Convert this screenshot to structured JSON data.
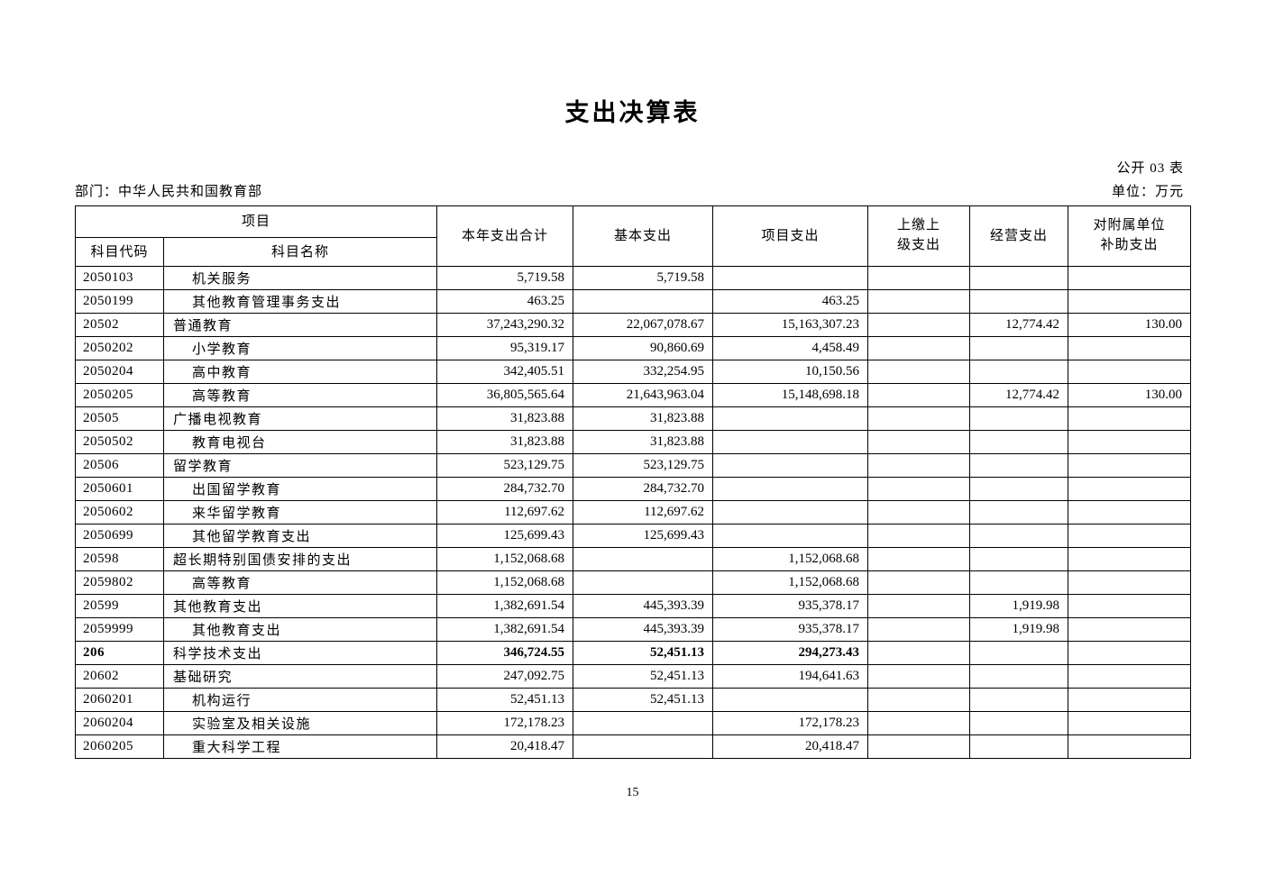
{
  "page": {
    "title": "支出决算表",
    "table_code_label": "公开 03 表",
    "department_label": "部门：中华人民共和国教育部",
    "unit_label": "单位：万元",
    "page_number": "15"
  },
  "table": {
    "header": {
      "group_project": "项目",
      "subject_code": "科目代码",
      "subject_name": "科目名称",
      "total": "本年支出合计",
      "basic": "基本支出",
      "project": "项目支出",
      "upturned": "上缴上\n级支出",
      "operating": "经营支出",
      "subsidy": "对附属单位\n补助支出"
    },
    "rows": [
      {
        "code": "2050103",
        "name": "机关服务",
        "level": 2,
        "bold": false,
        "values": [
          "5,719.58",
          "5,719.58",
          "",
          "",
          "",
          ""
        ]
      },
      {
        "code": "2050199",
        "name": "其他教育管理事务支出",
        "level": 2,
        "bold": false,
        "values": [
          "463.25",
          "",
          "463.25",
          "",
          "",
          ""
        ]
      },
      {
        "code": "20502",
        "name": "普通教育",
        "level": 1,
        "bold": false,
        "values": [
          "37,243,290.32",
          "22,067,078.67",
          "15,163,307.23",
          "",
          "12,774.42",
          "130.00"
        ]
      },
      {
        "code": "2050202",
        "name": "小学教育",
        "level": 2,
        "bold": false,
        "values": [
          "95,319.17",
          "90,860.69",
          "4,458.49",
          "",
          "",
          ""
        ]
      },
      {
        "code": "2050204",
        "name": "高中教育",
        "level": 2,
        "bold": false,
        "values": [
          "342,405.51",
          "332,254.95",
          "10,150.56",
          "",
          "",
          ""
        ]
      },
      {
        "code": "2050205",
        "name": "高等教育",
        "level": 2,
        "bold": false,
        "values": [
          "36,805,565.64",
          "21,643,963.04",
          "15,148,698.18",
          "",
          "12,774.42",
          "130.00"
        ]
      },
      {
        "code": "20505",
        "name": "广播电视教育",
        "level": 1,
        "bold": false,
        "values": [
          "31,823.88",
          "31,823.88",
          "",
          "",
          "",
          ""
        ]
      },
      {
        "code": "2050502",
        "name": "教育电视台",
        "level": 2,
        "bold": false,
        "values": [
          "31,823.88",
          "31,823.88",
          "",
          "",
          "",
          ""
        ]
      },
      {
        "code": "20506",
        "name": "留学教育",
        "level": 1,
        "bold": false,
        "values": [
          "523,129.75",
          "523,129.75",
          "",
          "",
          "",
          ""
        ]
      },
      {
        "code": "2050601",
        "name": "出国留学教育",
        "level": 2,
        "bold": false,
        "values": [
          "284,732.70",
          "284,732.70",
          "",
          "",
          "",
          ""
        ]
      },
      {
        "code": "2050602",
        "name": "来华留学教育",
        "level": 2,
        "bold": false,
        "values": [
          "112,697.62",
          "112,697.62",
          "",
          "",
          "",
          ""
        ]
      },
      {
        "code": "2050699",
        "name": "其他留学教育支出",
        "level": 2,
        "bold": false,
        "values": [
          "125,699.43",
          "125,699.43",
          "",
          "",
          "",
          ""
        ]
      },
      {
        "code": "20598",
        "name": "超长期特别国债安排的支出",
        "level": 1,
        "bold": false,
        "values": [
          "1,152,068.68",
          "",
          "1,152,068.68",
          "",
          "",
          ""
        ]
      },
      {
        "code": "2059802",
        "name": "高等教育",
        "level": 2,
        "bold": false,
        "values": [
          "1,152,068.68",
          "",
          "1,152,068.68",
          "",
          "",
          ""
        ]
      },
      {
        "code": "20599",
        "name": "其他教育支出",
        "level": 1,
        "bold": false,
        "values": [
          "1,382,691.54",
          "445,393.39",
          "935,378.17",
          "",
          "1,919.98",
          ""
        ]
      },
      {
        "code": "2059999",
        "name": "其他教育支出",
        "level": 2,
        "bold": false,
        "values": [
          "1,382,691.54",
          "445,393.39",
          "935,378.17",
          "",
          "1,919.98",
          ""
        ]
      },
      {
        "code": "206",
        "name": "科学技术支出",
        "level": 1,
        "bold": true,
        "values": [
          "346,724.55",
          "52,451.13",
          "294,273.43",
          "",
          "",
          ""
        ]
      },
      {
        "code": "20602",
        "name": "基础研究",
        "level": 1,
        "bold": false,
        "values": [
          "247,092.75",
          "52,451.13",
          "194,641.63",
          "",
          "",
          ""
        ]
      },
      {
        "code": "2060201",
        "name": "机构运行",
        "level": 2,
        "bold": false,
        "values": [
          "52,451.13",
          "52,451.13",
          "",
          "",
          "",
          ""
        ]
      },
      {
        "code": "2060204",
        "name": "实验室及相关设施",
        "level": 2,
        "bold": false,
        "values": [
          "172,178.23",
          "",
          "172,178.23",
          "",
          "",
          ""
        ]
      },
      {
        "code": "2060205",
        "name": "重大科学工程",
        "level": 2,
        "bold": false,
        "values": [
          "20,418.47",
          "",
          "20,418.47",
          "",
          "",
          ""
        ]
      }
    ]
  }
}
